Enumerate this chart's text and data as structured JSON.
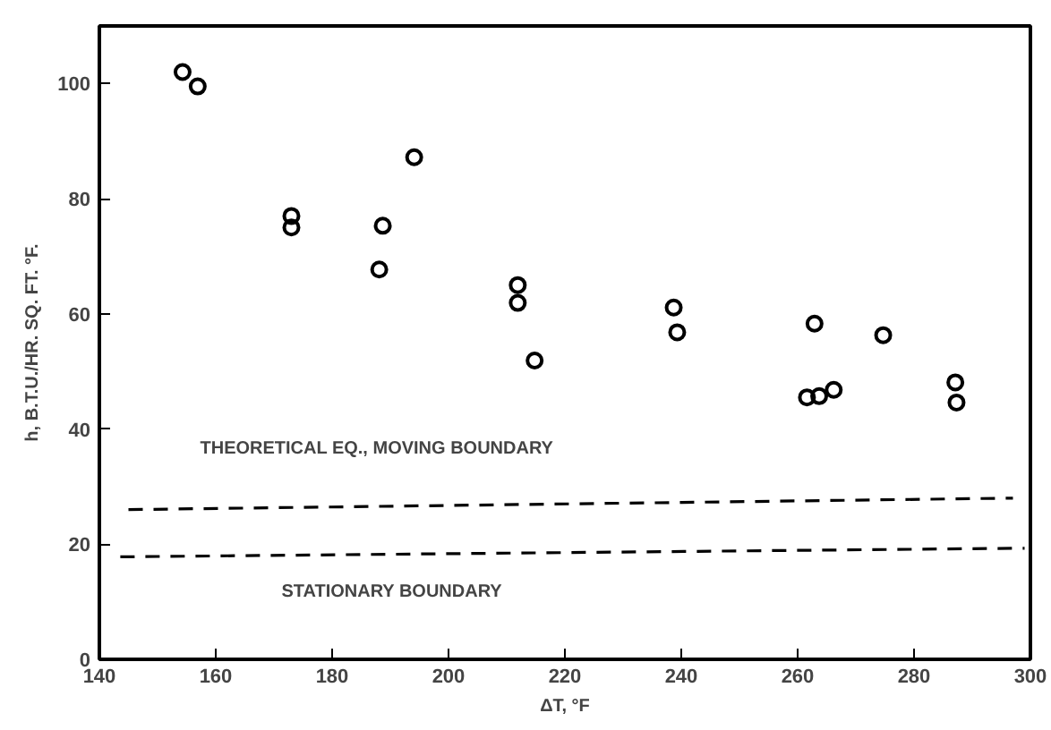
{
  "chart_data": {
    "type": "scatter",
    "xlabel": "ΔT, °F",
    "ylabel": "h, B.T.U./HR. SQ. FT. °F.",
    "xlim": [
      140,
      300
    ],
    "ylim": [
      0,
      110
    ],
    "xticks": [
      140,
      160,
      180,
      200,
      220,
      240,
      260,
      280,
      300
    ],
    "yticks": [
      0,
      20,
      40,
      60,
      80,
      100
    ],
    "grid": false,
    "series": [
      {
        "marker": "circle",
        "color": "#000000",
        "x": [
          154.3,
          156.9,
          173,
          173,
          188.1,
          188.7,
          194.1,
          211.9,
          211.9,
          214.8,
          238.7,
          239.3,
          262.9,
          274.7,
          261.6,
          263.7,
          266.2,
          287.1,
          287.3
        ],
        "values": [
          102,
          99.5,
          77,
          75,
          67.7,
          75.3,
          87.2,
          65,
          61.9,
          51.9,
          61.1,
          56.8,
          58.3,
          56.3,
          45.5,
          45.7,
          46.8,
          48.1,
          44.6
        ]
      },
      {
        "type": "line",
        "marker": "none",
        "line_style": "dashed",
        "color": "#000000",
        "x": [
          145,
          297
        ],
        "values": [
          26,
          28
        ]
      },
      {
        "type": "line",
        "marker": "none",
        "line_style": "dashed",
        "color": "#000000",
        "x": [
          143.6,
          299
        ],
        "values": [
          17.8,
          19.3
        ]
      }
    ],
    "annotations": [
      "THEORETICAL EQ., MOVING BOUNDARY",
      "STATIONARY BOUNDARY"
    ]
  }
}
